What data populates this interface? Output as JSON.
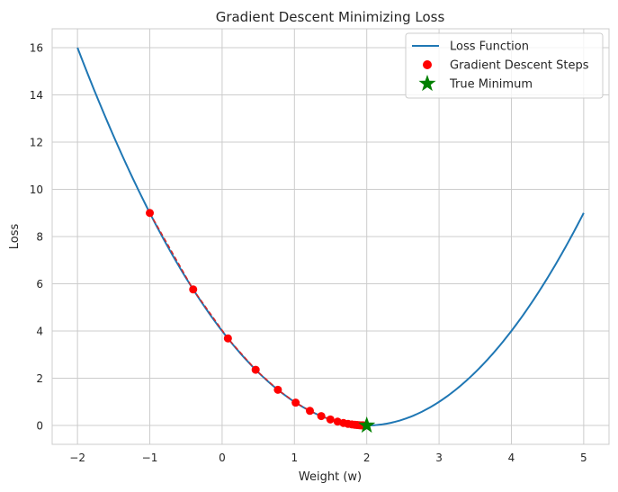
{
  "chart_data": {
    "type": "line",
    "title": "Gradient Descent Minimizing Loss",
    "xlabel": "Weight (w)",
    "ylabel": "Loss",
    "xlim": [
      -2.35,
      5.35
    ],
    "ylim": [
      -0.8,
      16.8
    ],
    "xticks": [
      -2,
      -1,
      0,
      1,
      2,
      3,
      4,
      5
    ],
    "yticks": [
      0,
      2,
      4,
      6,
      8,
      10,
      12,
      14,
      16
    ],
    "grid": true,
    "legend_position": "top-right",
    "colors": {
      "loss_line": "#1f77b4",
      "steps": "#ff0000",
      "path": "#d62728",
      "minimum": "#008000",
      "grid": "#cccccc",
      "spine": "#cccccc"
    },
    "series": [
      {
        "name": "Loss Function",
        "kind": "line",
        "formula": "(w - 2)^2",
        "x_range": [
          -2,
          5
        ]
      },
      {
        "name": "Gradient Descent Steps",
        "kind": "scatter",
        "x": [
          -1.0,
          -0.4,
          0.08,
          0.464,
          0.771,
          1.017,
          1.214,
          1.371,
          1.497,
          1.597,
          1.678,
          1.742,
          1.794,
          1.835,
          1.868,
          1.894,
          1.915,
          1.932,
          1.946,
          1.957
        ],
        "y": [
          9.0,
          5.76,
          3.686,
          2.359,
          1.51,
          0.966,
          0.618,
          0.396,
          0.253,
          0.162,
          0.104,
          0.066,
          0.043,
          0.027,
          0.017,
          0.011,
          0.007,
          0.005,
          0.003,
          0.002
        ]
      },
      {
        "name": "True Minimum",
        "kind": "marker",
        "x": [
          2
        ],
        "y": [
          0
        ]
      }
    ]
  }
}
